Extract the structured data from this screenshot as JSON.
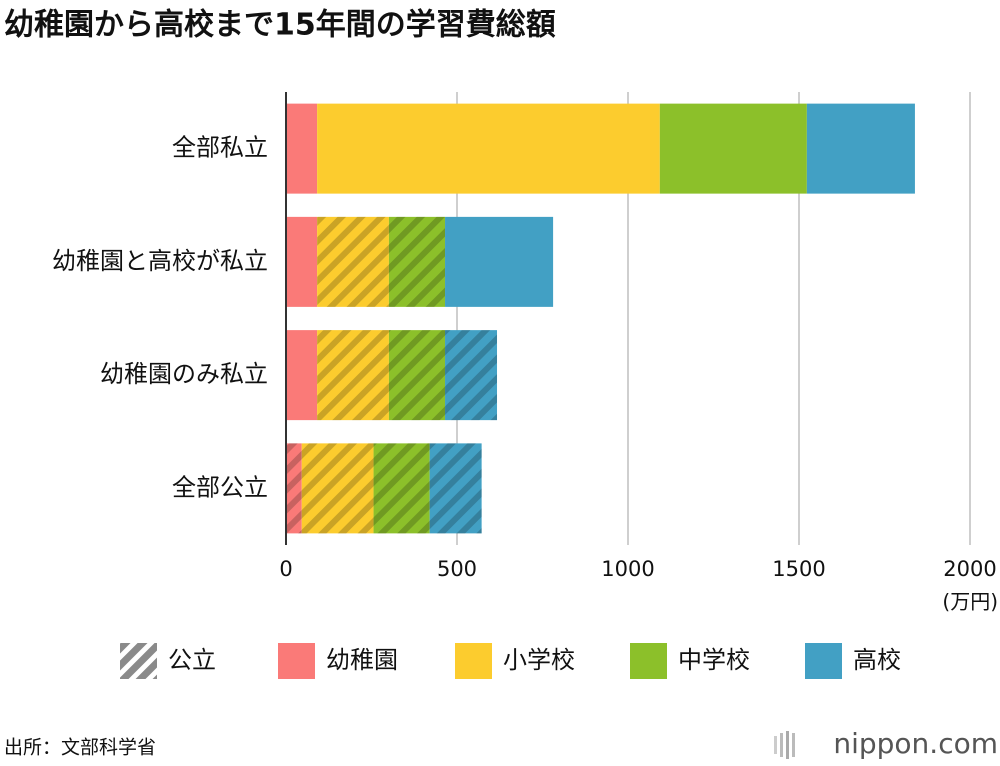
{
  "chart_data": {
    "type": "stacked-bar-horizontal",
    "title": "幼稚園から高校まで15年間の学習費総額",
    "categories": [
      "全部私立",
      "幼稚園と高校が私立",
      "幼稚園のみ私立",
      "全部公立"
    ],
    "series": [
      {
        "name": "幼稚園",
        "color": "#fa7a78",
        "values": [
          91,
          91,
          91,
          46
        ],
        "hatched": [
          false,
          false,
          false,
          true
        ]
      },
      {
        "name": "小学校",
        "color": "#fccc2e",
        "values": [
          1002,
          210,
          210,
          210
        ],
        "hatched": [
          false,
          true,
          true,
          true
        ]
      },
      {
        "name": "中学校",
        "color": "#8cc02a",
        "values": [
          430,
          164,
          164,
          164
        ],
        "hatched": [
          false,
          true,
          true,
          true
        ]
      },
      {
        "name": "高校",
        "color": "#42a0c4",
        "values": [
          316,
          316,
          152,
          152
        ],
        "hatched": [
          false,
          false,
          true,
          true
        ]
      }
    ],
    "hatch_label": "公立",
    "xlim": [
      0,
      2000
    ],
    "xticks": [
      0,
      500,
      1000,
      1500,
      2000
    ],
    "x_unit": "(万円)",
    "grid": true,
    "source": "出所：文部科学省",
    "logo": "nippon.com"
  }
}
